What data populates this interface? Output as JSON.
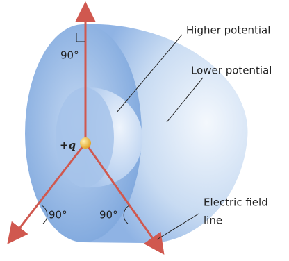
{
  "labels": {
    "higher_potential": "Higher potential",
    "lower_potential": "Lower potential",
    "field_line": [
      "Electric field",
      "line"
    ],
    "charge": "+q",
    "angles": [
      "90°",
      "90°",
      "90°"
    ]
  }
}
